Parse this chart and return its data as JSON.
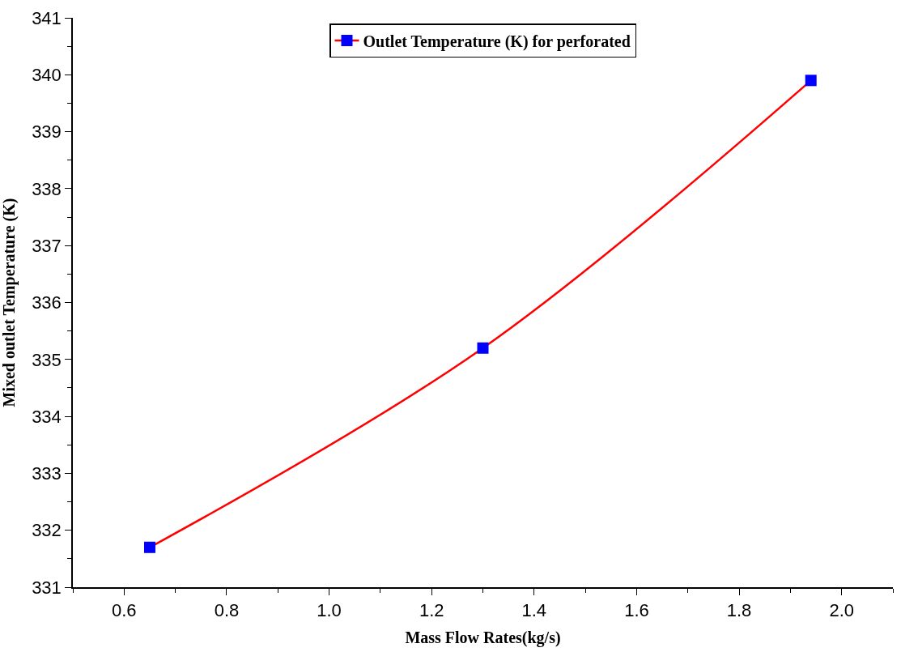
{
  "chart_data": {
    "type": "line",
    "xlabel": "Mass Flow Rates(kg/s)",
    "ylabel": "Mixed outlet Temperature (K)",
    "x": [
      0.65,
      1.3,
      1.94
    ],
    "series": [
      {
        "name": "Outlet Temperature (K) for perforated",
        "color": "#ff0000",
        "colors": [
          "#0000ff",
          "#0000ff",
          "#0000ff"
        ],
        "values": [
          331.7,
          335.2,
          339.9
        ]
      }
    ],
    "xlim": [
      0.5,
      2.1
    ],
    "xticks": [
      0.6,
      0.8,
      {
        "value": 1.0,
        "label": "1.0"
      },
      1.2,
      1.4,
      1.6,
      1.8,
      {
        "value": 2.0,
        "label": "2.0"
      }
    ],
    "ylim": [
      331,
      341
    ],
    "yticks": [
      331,
      332,
      333,
      334,
      335,
      336,
      337,
      338,
      339,
      340,
      341
    ],
    "legend": "top",
    "marker": "square",
    "line_style": "solid"
  }
}
